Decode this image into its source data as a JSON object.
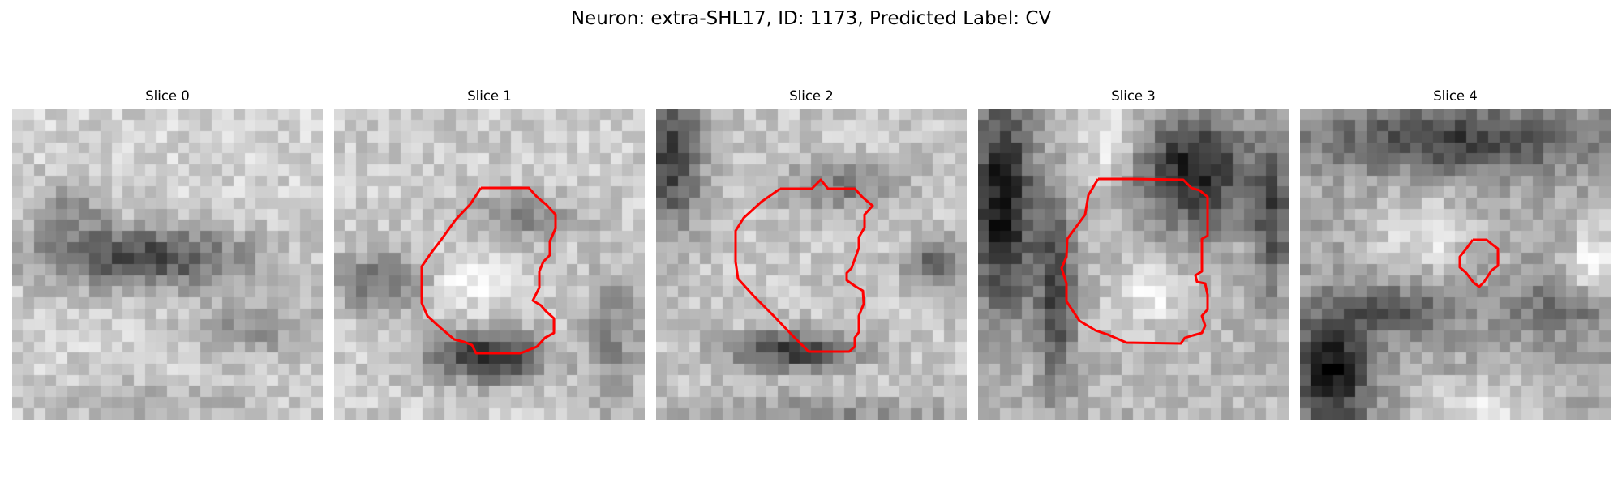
{
  "figure": {
    "title": "Neuron: extra-SHL17, ID: 1173, Predicted Label: CV"
  },
  "slices": [
    {
      "label": "Slice 0",
      "has_contour": false
    },
    {
      "label": "Slice 1",
      "has_contour": true
    },
    {
      "label": "Slice 2",
      "has_contour": true
    },
    {
      "label": "Slice 3",
      "has_contour": true
    },
    {
      "label": "Slice 4",
      "has_contour": true
    }
  ],
  "colors": {
    "contour": "#ff0000",
    "background": "#ffffff"
  },
  "colormap": "gray"
}
